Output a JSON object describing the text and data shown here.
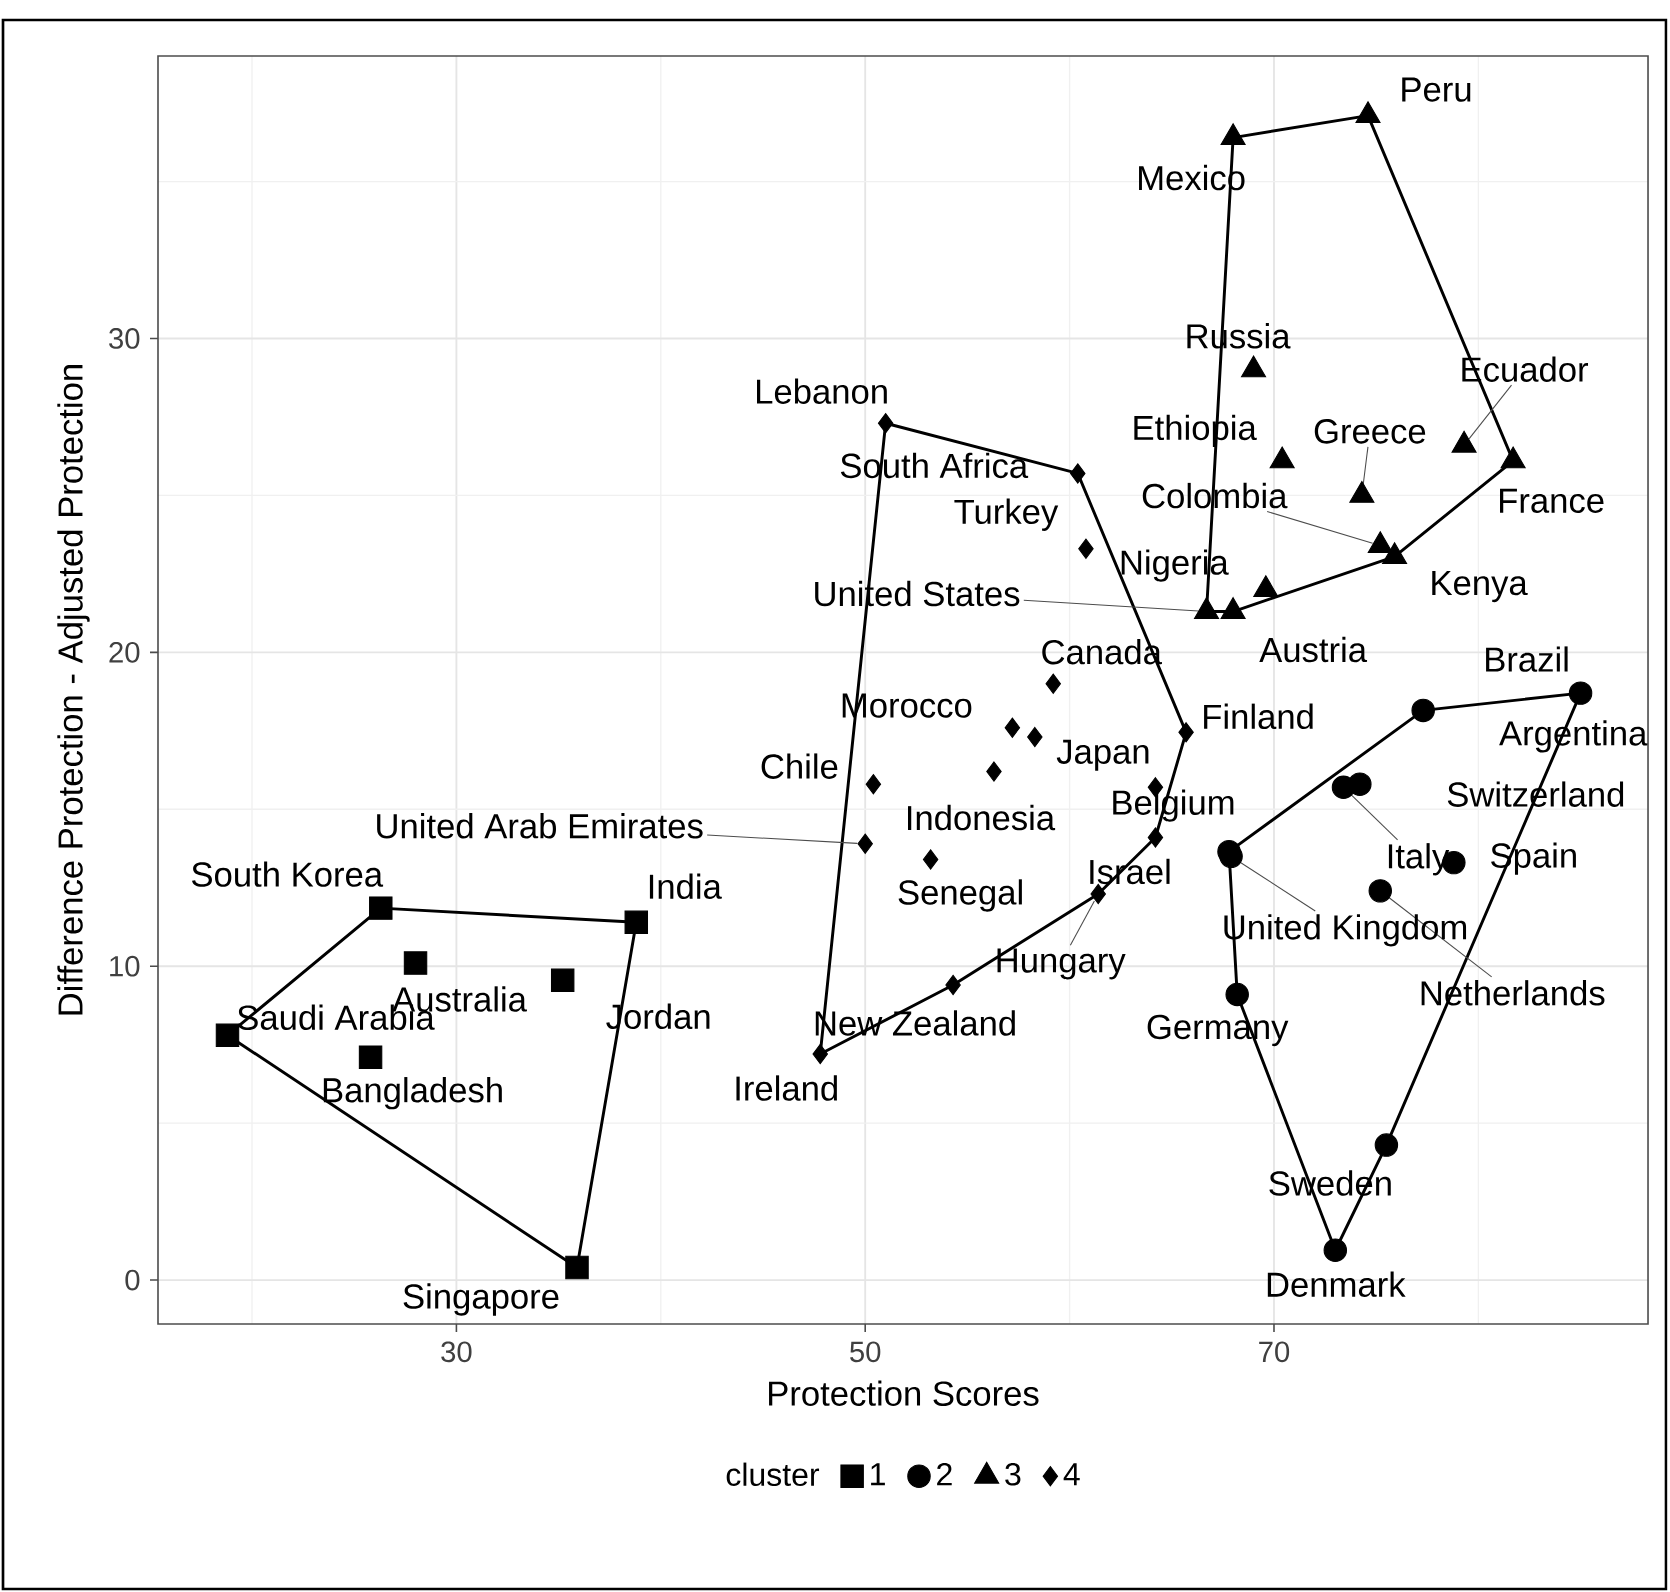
{
  "chart_data": {
    "type": "scatter",
    "xlabel": "Protection Scores",
    "ylabel": "Difference Protection - Adjusted Protection",
    "legend_title": "cluster",
    "legend": "bottom",
    "grid": true,
    "xlim": [
      15.4,
      88.3
    ],
    "ylim": [
      -1.4,
      39.0
    ],
    "xticks": [
      30,
      50,
      70
    ],
    "yticks": [
      0,
      10,
      20,
      30
    ],
    "series": [
      {
        "name": "1",
        "marker": "square",
        "color": "#000000",
        "x": [
          26.3,
          38.8,
          28.0,
          35.2,
          18.8,
          25.8,
          35.9
        ],
        "values": [
          11.85,
          11.4,
          10.1,
          9.55,
          7.8,
          7.1,
          0.4
        ]
      },
      {
        "name": "2",
        "marker": "circle",
        "color": "#000000",
        "x": [
          85.0,
          77.3,
          74.2,
          73.4,
          78.8,
          75.2,
          67.8,
          67.9,
          68.2,
          75.5,
          73.0
        ],
        "values": [
          18.7,
          18.15,
          15.8,
          15.7,
          13.3,
          12.4,
          13.65,
          13.5,
          9.1,
          4.3,
          0.95
        ]
      },
      {
        "name": "3",
        "marker": "triangle",
        "color": "#000000",
        "x": [
          74.6,
          68.0,
          69.0,
          70.4,
          74.3,
          79.3,
          81.7,
          75.2,
          75.9,
          69.6,
          66.7,
          68.0
        ],
        "values": [
          37.1,
          36.4,
          29.0,
          26.1,
          25.0,
          26.6,
          26.1,
          23.4,
          23.05,
          22.0,
          21.3,
          21.3
        ]
      },
      {
        "name": "4",
        "marker": "diamond",
        "color": "#000000",
        "x": [
          51.0,
          60.4,
          60.8,
          59.2,
          65.7,
          57.2,
          58.3,
          64.2,
          50.4,
          56.3,
          50.0,
          53.2,
          64.2,
          61.4,
          54.3,
          47.8
        ],
        "values": [
          27.3,
          25.7,
          23.3,
          19.0,
          17.45,
          17.6,
          17.3,
          15.7,
          15.8,
          16.2,
          13.9,
          13.4,
          14.1,
          12.3,
          9.4,
          7.2
        ]
      },
      {
        "type": "line",
        "color": "#000000",
        "x": [
          18.8,
          26.3,
          38.8
        ],
        "values": [
          7.8,
          11.85,
          11.4
        ]
      },
      {
        "type": "line",
        "color": "#000000",
        "x": [
          18.8,
          35.9,
          38.8
        ],
        "values": [
          7.8,
          0.4,
          11.4
        ]
      },
      {
        "type": "line",
        "color": "#000000",
        "x": [
          67.8,
          77.3,
          85.0
        ],
        "values": [
          13.65,
          18.15,
          18.7
        ]
      },
      {
        "type": "line",
        "color": "#000000",
        "x": [
          67.8,
          68.2,
          73.0,
          75.5,
          85.0
        ],
        "values": [
          13.65,
          9.1,
          0.95,
          4.3,
          18.7
        ]
      },
      {
        "type": "line",
        "color": "#000000",
        "x": [
          66.7,
          68.0,
          74.6,
          81.7
        ],
        "values": [
          21.3,
          36.4,
          37.1,
          26.1
        ]
      },
      {
        "type": "line",
        "color": "#000000",
        "x": [
          66.7,
          68.0,
          75.9,
          81.7
        ],
        "values": [
          21.3,
          21.3,
          23.05,
          26.1
        ]
      },
      {
        "type": "line",
        "color": "#000000",
        "x": [
          47.8,
          51.0,
          60.4,
          65.7
        ],
        "values": [
          7.2,
          27.3,
          25.7,
          17.45
        ]
      },
      {
        "type": "line",
        "color": "#000000",
        "x": [
          47.8,
          54.3,
          61.4,
          64.2,
          65.7
        ],
        "values": [
          7.2,
          9.4,
          12.3,
          14.1,
          17.45
        ]
      }
    ],
    "annotations": [
      {
        "text": "South Korea",
        "x": 26.3,
        "y": 11.85
      },
      {
        "text": "India",
        "x": 38.8,
        "y": 11.4
      },
      {
        "text": "Australia",
        "x": 28.0,
        "y": 10.1
      },
      {
        "text": "Jordan",
        "x": 35.2,
        "y": 9.55
      },
      {
        "text": "Saudi Arabia",
        "x": 18.8,
        "y": 7.8
      },
      {
        "text": "Bangladesh",
        "x": 25.8,
        "y": 7.1
      },
      {
        "text": "Singapore",
        "x": 35.9,
        "y": 0.4
      },
      {
        "text": "Brazil",
        "x": 85.0,
        "y": 18.7
      },
      {
        "text": "Argentina",
        "x": 77.3,
        "y": 18.15
      },
      {
        "text": "Switzerland",
        "x": 74.2,
        "y": 15.8
      },
      {
        "text": "Italy",
        "x": 73.4,
        "y": 15.7
      },
      {
        "text": "Spain",
        "x": 78.8,
        "y": 13.3
      },
      {
        "text": "Netherlands",
        "x": 75.2,
        "y": 12.4
      },
      {
        "text": "Belgium",
        "x": 67.8,
        "y": 13.65
      },
      {
        "text": "United Kingdom",
        "x": 67.9,
        "y": 13.5
      },
      {
        "text": "Germany",
        "x": 68.2,
        "y": 9.1
      },
      {
        "text": "Sweden",
        "x": 75.5,
        "y": 4.3
      },
      {
        "text": "Denmark",
        "x": 73.0,
        "y": 0.95
      },
      {
        "text": "Peru",
        "x": 74.6,
        "y": 37.1
      },
      {
        "text": "Mexico",
        "x": 68.0,
        "y": 36.4
      },
      {
        "text": "Russia",
        "x": 69.0,
        "y": 29.0
      },
      {
        "text": "Ethiopia",
        "x": 70.4,
        "y": 26.1
      },
      {
        "text": "Greece",
        "x": 74.3,
        "y": 25.0
      },
      {
        "text": "Ecuador",
        "x": 79.3,
        "y": 26.6
      },
      {
        "text": "France",
        "x": 81.7,
        "y": 26.1
      },
      {
        "text": "Colombia",
        "x": 75.2,
        "y": 23.4
      },
      {
        "text": "Kenya",
        "x": 75.9,
        "y": 23.05
      },
      {
        "text": "Nigeria",
        "x": 69.6,
        "y": 22.0
      },
      {
        "text": "United States",
        "x": 66.7,
        "y": 21.3
      },
      {
        "text": "Austria",
        "x": 68.0,
        "y": 21.3
      },
      {
        "text": "Lebanon",
        "x": 51.0,
        "y": 27.3
      },
      {
        "text": "South Africa",
        "x": 60.4,
        "y": 25.7
      },
      {
        "text": "Turkey",
        "x": 60.8,
        "y": 23.3
      },
      {
        "text": "Canada",
        "x": 59.2,
        "y": 19.0
      },
      {
        "text": "Finland",
        "x": 65.7,
        "y": 17.45
      },
      {
        "text": "Morocco",
        "x": 57.2,
        "y": 17.6
      },
      {
        "text": "Japan",
        "x": 64.2,
        "y": 15.7
      },
      {
        "text": "Chile",
        "x": 50.4,
        "y": 15.8
      },
      {
        "text": "Indonesia",
        "x": 56.3,
        "y": 16.2
      },
      {
        "text": "United Arab Emirates",
        "x": 50.0,
        "y": 13.9
      },
      {
        "text": "Senegal",
        "x": 53.2,
        "y": 13.4
      },
      {
        "text": "Israel",
        "x": 64.2,
        "y": 14.1
      },
      {
        "text": "Hungary",
        "x": 61.4,
        "y": 12.3
      },
      {
        "text": "New Zealand",
        "x": 54.3,
        "y": 9.4
      },
      {
        "text": "Ireland",
        "x": 47.8,
        "y": 7.2
      }
    ]
  }
}
